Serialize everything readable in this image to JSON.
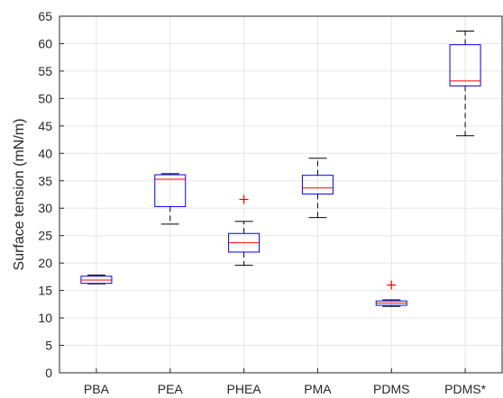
{
  "chart_data": {
    "type": "box",
    "title": "",
    "xlabel": "",
    "ylabel": "Surface tension (mN/m)",
    "ylim": [
      0,
      65
    ],
    "yticks": [
      0,
      5,
      10,
      15,
      20,
      25,
      30,
      35,
      40,
      45,
      50,
      55,
      60,
      65
    ],
    "grid": true,
    "categories": [
      "PBA",
      "PEA",
      "PHEA",
      "PMA",
      "PDMS",
      "PDMS*"
    ],
    "boxes": [
      {
        "whisker_low": 16.2,
        "q1": 16.3,
        "median": 16.9,
        "q3": 17.6,
        "whisker_high": 17.8,
        "outliers": []
      },
      {
        "whisker_low": 27.1,
        "q1": 30.3,
        "median": 35.3,
        "q3": 36.1,
        "whisker_high": 36.3,
        "outliers": []
      },
      {
        "whisker_low": 19.6,
        "q1": 22.0,
        "median": 23.7,
        "q3": 25.4,
        "whisker_high": 27.6,
        "outliers": [
          31.6
        ]
      },
      {
        "whisker_low": 28.3,
        "q1": 32.6,
        "median": 33.7,
        "q3": 36.0,
        "whisker_high": 39.1,
        "outliers": []
      },
      {
        "whisker_low": 12.1,
        "q1": 12.3,
        "median": 12.7,
        "q3": 13.1,
        "whisker_high": 13.3,
        "outliers": [
          16.0
        ]
      },
      {
        "whisker_low": 43.2,
        "q1": 52.3,
        "median": 53.2,
        "q3": 59.8,
        "whisker_high": 62.3,
        "outliers": []
      }
    ],
    "colors": {
      "box": "#0000ff",
      "median": "#ff0000",
      "whisker": "#000000",
      "outlier": "#ff0000",
      "grid": "#e6e6e6",
      "axis": "#262626"
    }
  }
}
